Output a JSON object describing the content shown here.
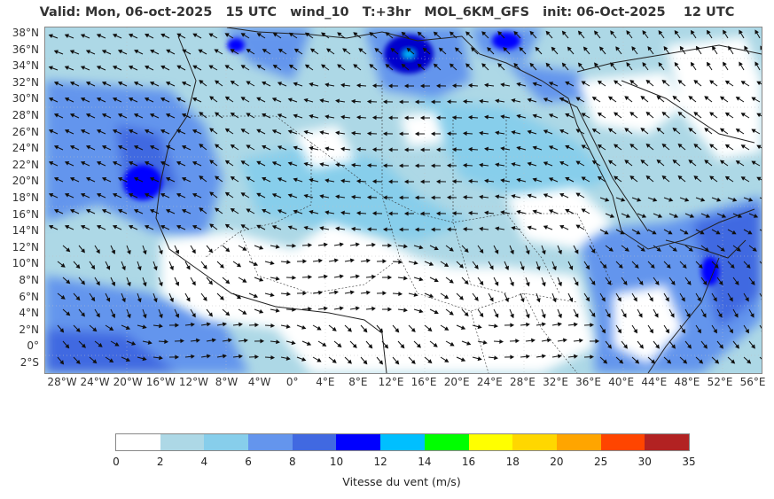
{
  "title": "Valid: Mon, 06-oct-2025   15 UTC   wind_10   T:+3hr   MOL_6KM_GFS   init: 06-Oct-2025    12 UTC",
  "map": {
    "lat_labels": [
      "38°N",
      "36°N",
      "34°N",
      "32°N",
      "30°N",
      "28°N",
      "26°N",
      "24°N",
      "22°N",
      "20°N",
      "18°N",
      "16°N",
      "14°N",
      "12°N",
      "10°N",
      "8°N",
      "6°N",
      "4°N",
      "2°N",
      "0°",
      "2°S"
    ],
    "lon_labels": [
      "28°W",
      "24°W",
      "20°W",
      "16°W",
      "12°W",
      "8°W",
      "4°W",
      "0°",
      "4°E",
      "8°E",
      "12°E",
      "16°E",
      "20°E",
      "24°E",
      "28°E",
      "32°E",
      "36°E",
      "40°E",
      "44°E",
      "48°E",
      "52°E",
      "56°E"
    ]
  },
  "colorbar": {
    "title": "Vitesse du vent (m/s)",
    "ticks": [
      "0",
      "2",
      "4",
      "6",
      "8",
      "10",
      "12",
      "14",
      "16",
      "18",
      "20",
      "25",
      "30",
      "35"
    ],
    "colors": [
      "#ffffff",
      "#add8e6",
      "#87ceeb",
      "#6495ed",
      "#4169e1",
      "#0000ff",
      "#00bfff",
      "#00ff00",
      "#ffff00",
      "#ffd700",
      "#ffa500",
      "#ff4500",
      "#b22222"
    ]
  }
}
